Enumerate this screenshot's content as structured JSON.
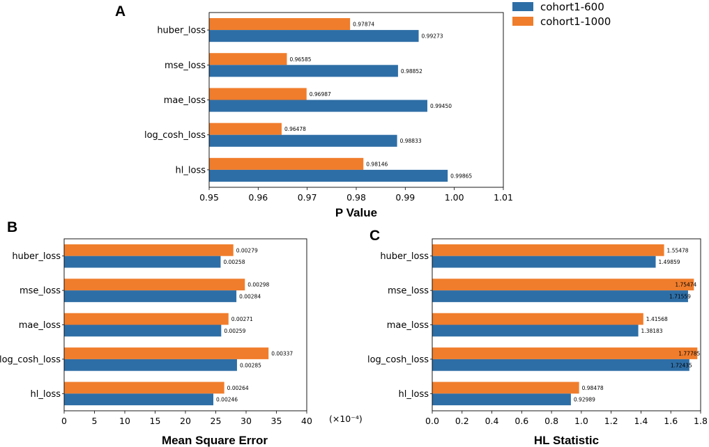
{
  "colors": {
    "cohort600": "#2e6ea6",
    "cohort1000": "#f07d2c"
  },
  "legend": {
    "items": [
      "cohort1-600",
      "cohort1-1000"
    ]
  },
  "chart_data": [
    {
      "panel": "A",
      "type": "bar",
      "orientation": "horizontal",
      "title": "",
      "xlabel": "P Value",
      "ylabel": "",
      "xlim": [
        0.95,
        1.01
      ],
      "xticks": [
        0.95,
        0.96,
        0.97,
        0.98,
        0.99,
        1.0,
        1.01
      ],
      "xtick_labels": [
        "0.95",
        "0.96",
        "0.97",
        "0.98",
        "0.99",
        "1.00",
        "1.01"
      ],
      "categories": [
        "huber_loss",
        "mse_loss",
        "mae_loss",
        "log_cosh_loss",
        "hl_loss"
      ],
      "series": [
        {
          "name": "cohort1-1000",
          "values": [
            0.97874,
            0.96585,
            0.96987,
            0.96478,
            0.98146
          ],
          "labels": [
            "0.97874",
            "0.96585",
            "0.96987",
            "0.96478",
            "0.98146"
          ]
        },
        {
          "name": "cohort1-600",
          "values": [
            0.99273,
            0.98852,
            0.9945,
            0.98833,
            0.99865
          ],
          "labels": [
            "0.99273",
            "0.98852",
            "0.99450",
            "0.98833",
            "0.99865"
          ]
        }
      ]
    },
    {
      "panel": "B",
      "type": "bar",
      "orientation": "horizontal",
      "title": "",
      "xlabel": "Mean Square Error",
      "ylabel": "",
      "axis_multiplier": "(×10⁻⁴)",
      "xlim": [
        0,
        40
      ],
      "xticks": [
        0,
        5,
        10,
        15,
        20,
        25,
        30,
        35,
        40
      ],
      "xtick_labels": [
        "0",
        "5",
        "10",
        "15",
        "20",
        "25",
        "30",
        "35",
        "40"
      ],
      "categories": [
        "huber_loss",
        "mse_loss",
        "mae_loss",
        "log_cosh_loss",
        "hl_loss"
      ],
      "series": [
        {
          "name": "cohort1-1000",
          "values": [
            27.9,
            29.8,
            27.1,
            33.7,
            26.4
          ],
          "labels": [
            "0.00279",
            "0.00298",
            "0.00271",
            "0.00337",
            "0.00264"
          ]
        },
        {
          "name": "cohort1-600",
          "values": [
            25.8,
            28.4,
            25.9,
            28.5,
            24.6
          ],
          "labels": [
            "0.00258",
            "0.00284",
            "0.00259",
            "0.00285",
            "0.00246"
          ]
        }
      ]
    },
    {
      "panel": "C",
      "type": "bar",
      "orientation": "horizontal",
      "title": "",
      "xlabel": "HL Statistic",
      "ylabel": "",
      "xlim": [
        0.0,
        1.8
      ],
      "xticks": [
        0.0,
        0.2,
        0.4,
        0.6,
        0.8,
        1.0,
        1.2,
        1.4,
        1.6,
        1.8
      ],
      "xtick_labels": [
        "0.0",
        "0.2",
        "0.4",
        "0.6",
        "0.8",
        "1.0",
        "1.2",
        "1.4",
        "1.6",
        "1.8"
      ],
      "categories": [
        "huber_loss",
        "mse_loss",
        "mae_loss",
        "log_cosh_loss",
        "hl_loss"
      ],
      "series": [
        {
          "name": "cohort1-1000",
          "values": [
            1.55478,
            1.75474,
            1.41568,
            1.77785,
            0.98478
          ],
          "labels": [
            "1.55478",
            "1.75474",
            "1.41568",
            "1.77785",
            "0.98478"
          ]
        },
        {
          "name": "cohort1-600",
          "values": [
            1.49859,
            1.71559,
            1.38183,
            1.72435,
            0.92989
          ],
          "labels": [
            "1.49859",
            "1.71559",
            "1.38183",
            "1.72435",
            "0.92989"
          ]
        }
      ]
    }
  ]
}
